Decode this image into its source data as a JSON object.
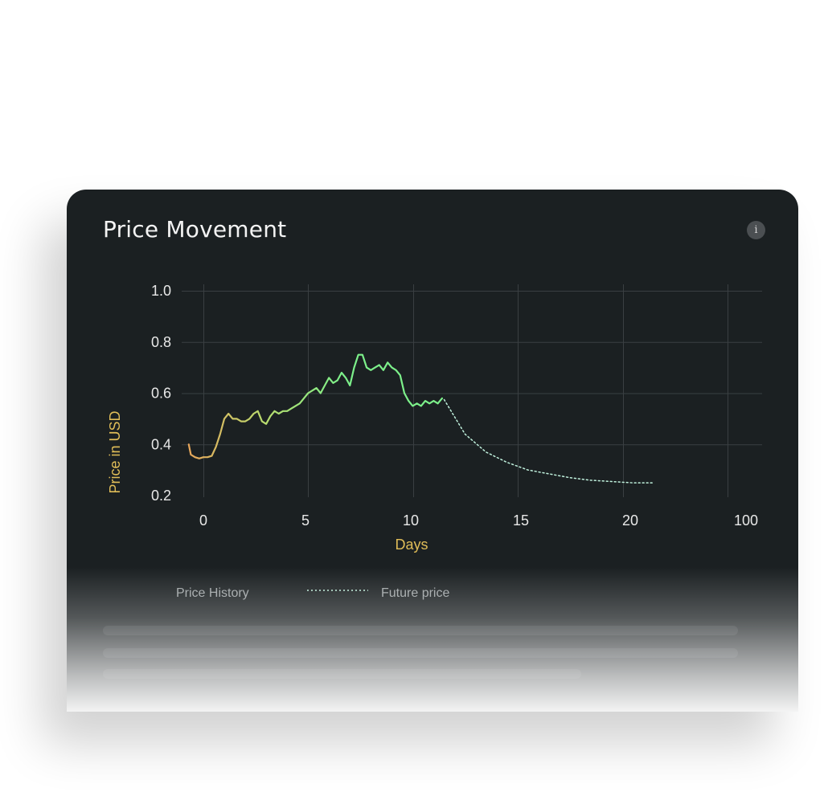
{
  "card": {
    "title": "Price Movement",
    "info_icon": "info-icon"
  },
  "chart_data": {
    "type": "line",
    "xlabel": "Days",
    "ylabel": "Price in USD",
    "x_ticks": [
      "0",
      "5",
      "10",
      "15",
      "20",
      "100"
    ],
    "y_ticks": [
      "1.0",
      "0.8",
      "0.6",
      "0.4",
      "0.2"
    ],
    "ylim": [
      0.2,
      1.0
    ],
    "grid": true,
    "legend_position": "bottom-left",
    "series": [
      {
        "name": "Price History",
        "style": "solid-gradient",
        "colors": [
          "#e8a55a",
          "#7cf08a"
        ],
        "x": [
          -0.7,
          -0.6,
          -0.4,
          -0.2,
          0.0,
          0.2,
          0.4,
          0.6,
          0.8,
          1.0,
          1.2,
          1.4,
          1.6,
          1.8,
          2.0,
          2.2,
          2.4,
          2.6,
          2.8,
          3.0,
          3.2,
          3.4,
          3.6,
          3.8,
          4.0,
          4.2,
          4.4,
          4.6,
          4.8,
          5.0,
          5.2,
          5.4,
          5.6,
          5.8,
          6.0,
          6.2,
          6.4,
          6.6,
          6.8,
          7.0,
          7.2,
          7.4,
          7.6,
          7.8,
          8.0,
          8.2,
          8.4,
          8.6,
          8.8,
          9.0,
          9.2,
          9.4,
          9.6,
          9.8,
          10.0,
          10.2,
          10.4,
          10.6,
          10.8,
          11.0,
          11.2,
          11.4
        ],
        "values": [
          0.4,
          0.36,
          0.35,
          0.345,
          0.35,
          0.35,
          0.355,
          0.39,
          0.44,
          0.5,
          0.52,
          0.5,
          0.5,
          0.49,
          0.49,
          0.5,
          0.52,
          0.53,
          0.49,
          0.48,
          0.51,
          0.53,
          0.52,
          0.53,
          0.53,
          0.54,
          0.55,
          0.56,
          0.58,
          0.6,
          0.61,
          0.62,
          0.6,
          0.63,
          0.66,
          0.64,
          0.65,
          0.68,
          0.66,
          0.63,
          0.7,
          0.75,
          0.75,
          0.7,
          0.69,
          0.7,
          0.71,
          0.69,
          0.72,
          0.7,
          0.69,
          0.67,
          0.6,
          0.57,
          0.55,
          0.56,
          0.55,
          0.57,
          0.56,
          0.57,
          0.56,
          0.58
        ]
      },
      {
        "name": "Future price",
        "style": "dotted",
        "colors": [
          "#bff0dc"
        ],
        "x": [
          11.5,
          12.5,
          13.5,
          14.5,
          15.5,
          16.5,
          17.5,
          18.5,
          19.5,
          20.5,
          21.5
        ],
        "values": [
          0.575,
          0.44,
          0.37,
          0.33,
          0.3,
          0.285,
          0.27,
          0.26,
          0.255,
          0.25,
          0.25
        ]
      }
    ]
  },
  "legend": [
    {
      "label": "Price History"
    },
    {
      "label": "Future price"
    }
  ]
}
